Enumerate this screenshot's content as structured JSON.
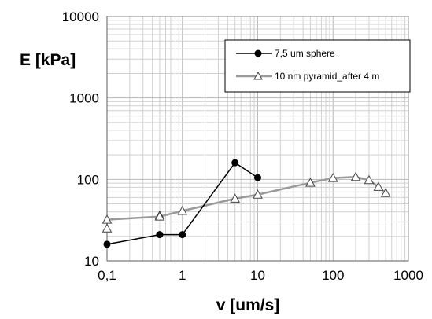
{
  "chart_data": {
    "type": "scatter",
    "xlabel": "v [um/s]",
    "ylabel": "E [kPa]",
    "xscale": "log",
    "yscale": "log",
    "xlim": [
      0.1,
      1000
    ],
    "ylim": [
      10,
      10000
    ],
    "grid": true,
    "legend_position": "top-right",
    "x_ticks": [
      {
        "value": 0.1,
        "label": "0,1"
      },
      {
        "value": 1,
        "label": "1"
      },
      {
        "value": 10,
        "label": "10"
      },
      {
        "value": 100,
        "label": "100"
      },
      {
        "value": 1000,
        "label": "1000"
      }
    ],
    "y_ticks": [
      {
        "value": 10,
        "label": "10"
      },
      {
        "value": 100,
        "label": "100"
      },
      {
        "value": 1000,
        "label": "1000"
      },
      {
        "value": 10000,
        "label": "10000"
      }
    ],
    "series": [
      {
        "name": "7,5 um sphere",
        "color": "#000000",
        "marker": "circle",
        "x": [
          0.1,
          0.5,
          1,
          5,
          10
        ],
        "y": [
          16,
          21,
          21,
          160,
          105
        ]
      },
      {
        "name": "10 nm pyramid_after 4 m",
        "color": "#9a9a9a",
        "marker": "triangle",
        "line": {
          "x": [
            0.1,
            0.5,
            1,
            5,
            10,
            50,
            100,
            200,
            300,
            400,
            500
          ],
          "y": [
            32,
            35,
            41,
            58,
            65,
            91,
            104,
            107,
            98,
            81,
            68
          ]
        },
        "x": [
          0.1,
          0.1,
          0.5,
          0.5,
          1,
          5,
          10,
          50,
          100,
          200,
          300,
          400,
          500
        ],
        "y": [
          32,
          25,
          36,
          35,
          41,
          58,
          65,
          91,
          104,
          107,
          98,
          81,
          68
        ]
      }
    ]
  }
}
